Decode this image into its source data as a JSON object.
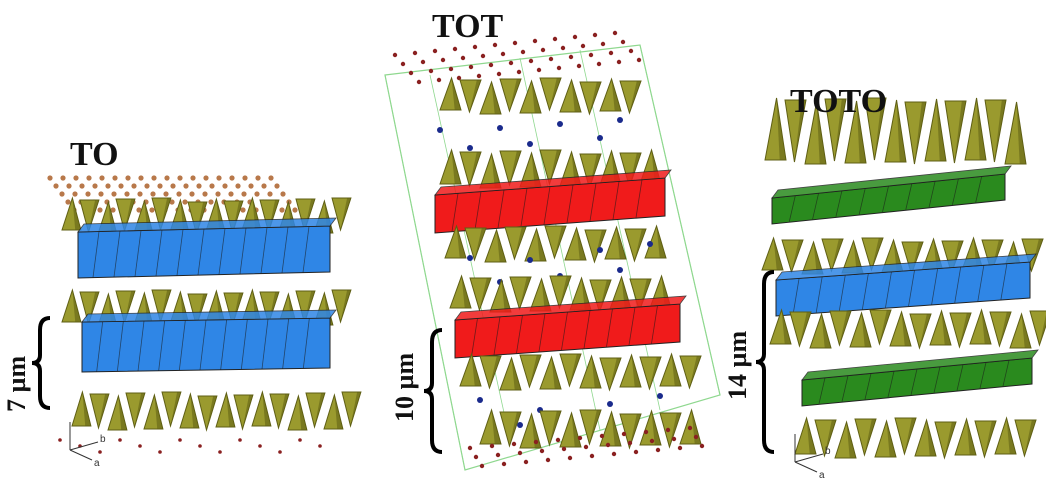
{
  "panels": [
    {
      "id": "to",
      "title": "TO",
      "scale": "7 µm"
    },
    {
      "id": "tot",
      "title": "TOT",
      "scale": "10 µm"
    },
    {
      "id": "toto",
      "title": "TOTO",
      "scale": "14 µm"
    }
  ],
  "axis_labels": {
    "a": "a",
    "b": "b"
  },
  "colors": {
    "tetrahedral": "#9a9a2e",
    "tetrahedral_dark": "#5f5f14",
    "octahedral_blue": "#2f86e6",
    "octahedral_red": "#f01b1b",
    "octahedral_green": "#2a8a1e",
    "atom_brown": "#b8784a",
    "atom_navy": "#1a2a8c",
    "atom_maroon": "#8a2020",
    "cell_edge": "#8fd88f"
  }
}
